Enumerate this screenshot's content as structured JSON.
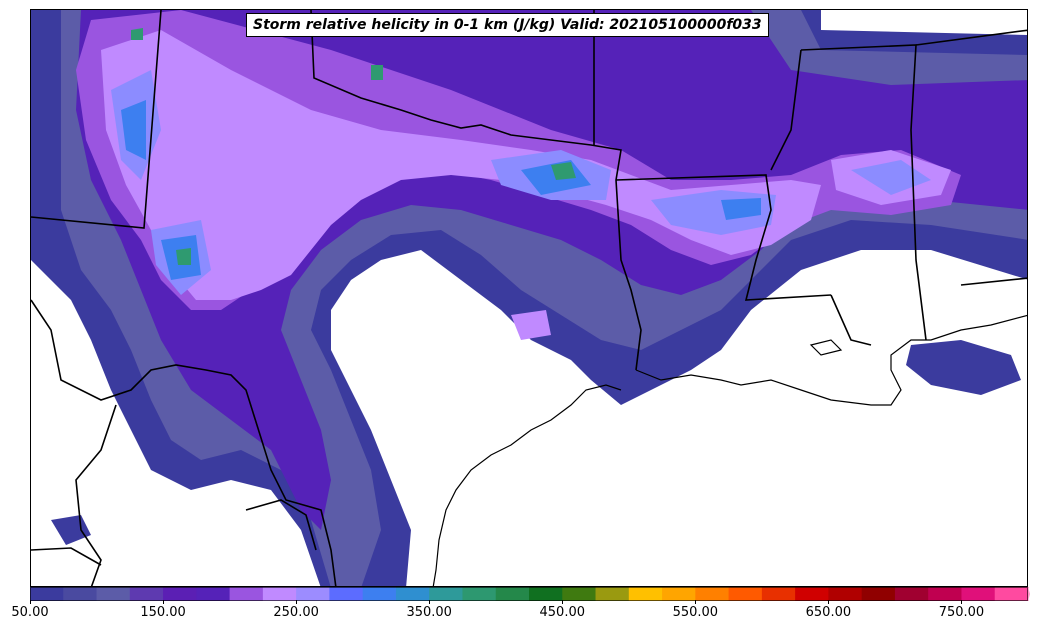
{
  "title": "Storm relative helicity in 0-1 km (J/kg) Valid: 202105100000f033",
  "colorbar": {
    "min": 50,
    "max": 800,
    "step": 25,
    "extend": "max",
    "extend_color": "#ff99cc",
    "colors": [
      "#3b3b9e",
      "#4a4aa0",
      "#5c5ca8",
      "#5e3ab0",
      "#5b1fb4",
      "#5522b8",
      "#9a55e0",
      "#c08aff",
      "#9c8cff",
      "#5c6cff",
      "#3d7ff0",
      "#2f8fd0",
      "#2e9a9a",
      "#2d9870",
      "#24884a",
      "#107020",
      "#3f7a10",
      "#9a9a10",
      "#ffc000",
      "#ffa500",
      "#ff8000",
      "#ff5a00",
      "#e83000",
      "#d00000",
      "#b00000",
      "#900000",
      "#a00030",
      "#c00050",
      "#e0107a",
      "#ff4aa0"
    ],
    "tick_labels": [
      "50.00",
      "150.00",
      "250.00",
      "350.00",
      "450.00",
      "550.00",
      "650.00",
      "750.00"
    ],
    "tick_values": [
      50,
      150,
      250,
      350,
      450,
      550,
      650,
      750
    ]
  },
  "map": {
    "fill_colors": {
      "level1": "#3b3b9e",
      "level2": "#5c5ca8",
      "level3": "#5522b8",
      "level4": "#9a55e0",
      "level5": "#c08aff",
      "level6": "#8c8cff",
      "level7": "#3d7ff0",
      "level8": "#2f9a70"
    }
  }
}
